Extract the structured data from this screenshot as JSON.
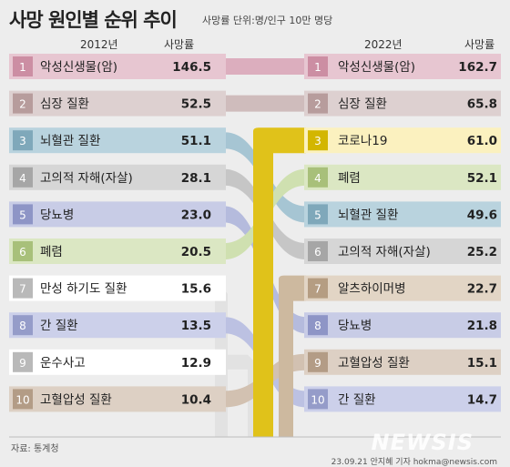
{
  "title": "사망 원인별 순위 추이",
  "unit_note": "사망률 단위:명/인구 10만 명당",
  "left": {
    "year": "2012년",
    "value_header": "사망률"
  },
  "right": {
    "year": "2022년",
    "value_header": "사망률"
  },
  "source": "자료: 통계청",
  "credit": "23.09.21 안지혜 기자 hokma@newsis.com",
  "logo": "NEWSIS",
  "chart_data": {
    "type": "table",
    "left": [
      {
        "rank": "1",
        "label": "악성신생물(암)",
        "value": "146.5",
        "key": "cancer"
      },
      {
        "rank": "2",
        "label": "심장 질환",
        "value": "52.5",
        "key": "heart"
      },
      {
        "rank": "3",
        "label": "뇌혈관 질환",
        "value": "51.1",
        "key": "cerebro"
      },
      {
        "rank": "4",
        "label": "고의적 자해(자살)",
        "value": "28.1",
        "key": "suicide"
      },
      {
        "rank": "5",
        "label": "당뇨병",
        "value": "23.0",
        "key": "diabetes"
      },
      {
        "rank": "6",
        "label": "폐렴",
        "value": "20.5",
        "key": "pneumonia"
      },
      {
        "rank": "7",
        "label": "만성 하기도 질환",
        "value": "15.6",
        "key": "clrd"
      },
      {
        "rank": "8",
        "label": "간 질환",
        "value": "13.5",
        "key": "liver"
      },
      {
        "rank": "9",
        "label": "운수사고",
        "value": "12.9",
        "key": "transport"
      },
      {
        "rank": "10",
        "label": "고혈압성 질환",
        "value": "10.4",
        "key": "hypertension"
      }
    ],
    "right": [
      {
        "rank": "1",
        "label": "악성신생물(암)",
        "value": "162.7",
        "key": "cancer"
      },
      {
        "rank": "2",
        "label": "심장 질환",
        "value": "65.8",
        "key": "heart"
      },
      {
        "rank": "3",
        "label": "코로나19",
        "value": "61.0",
        "key": "covid"
      },
      {
        "rank": "4",
        "label": "폐렴",
        "value": "52.1",
        "key": "pneumonia"
      },
      {
        "rank": "5",
        "label": "뇌혈관 질환",
        "value": "49.6",
        "key": "cerebro"
      },
      {
        "rank": "6",
        "label": "고의적 자해(자살)",
        "value": "25.2",
        "key": "suicide"
      },
      {
        "rank": "7",
        "label": "알츠하이머병",
        "value": "22.7",
        "key": "alzheimer"
      },
      {
        "rank": "8",
        "label": "당뇨병",
        "value": "21.8",
        "key": "diabetes"
      },
      {
        "rank": "9",
        "label": "고혈압성 질환",
        "value": "15.1",
        "key": "hypertension"
      },
      {
        "rank": "10",
        "label": "간 질환",
        "value": "14.7",
        "key": "liver"
      }
    ]
  },
  "colors": {
    "cancer": {
      "light": "#e7c6d1",
      "dark": "#cc8ea3",
      "link": "#dcaebe"
    },
    "heart": {
      "light": "#ddd0d0",
      "dark": "#b79c9c",
      "link": "#cfbcbc"
    },
    "cerebro": {
      "light": "#b9d3de",
      "dark": "#7fa8ba",
      "link": "#a6c5d3"
    },
    "suicide": {
      "light": "#d6d6d6",
      "dark": "#a6a6a6",
      "link": "#c6c6c6"
    },
    "diabetes": {
      "light": "#c8cce6",
      "dark": "#8e95c6",
      "link": "#b5bbdd"
    },
    "pneumonia": {
      "light": "#dbe7c3",
      "dark": "#a8c07a",
      "link": "#cfe0b0"
    },
    "clrd": {
      "light": "#ffffff",
      "dark": "#b9b9b9",
      "link": "#e2e2e2"
    },
    "liver": {
      "light": "#ccd0ea",
      "dark": "#959cc9",
      "link": "#bcc1e2"
    },
    "transport": {
      "light": "#ffffff",
      "dark": "#b9b9b9",
      "link": "#e2e2e2"
    },
    "hypertension": {
      "light": "#ddd0c4",
      "dark": "#b39c86",
      "link": "#d2c1b1"
    },
    "covid": {
      "light": "#fbf1bf",
      "dark": "#d3b600",
      "link": "#e0c21a"
    },
    "alzheimer": {
      "light": "#e2d5c5",
      "dark": "#b59d82",
      "link": "#cdb99f"
    }
  }
}
